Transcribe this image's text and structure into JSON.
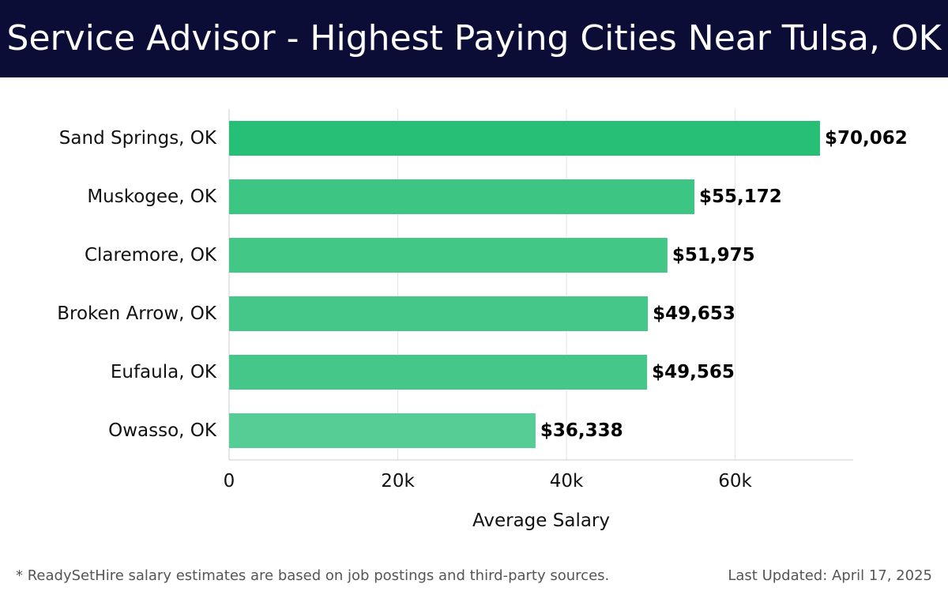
{
  "header": {
    "title": "Service Advisor - Highest Paying Cities Near Tulsa, OK"
  },
  "footer": {
    "note": "* ReadySetHire salary estimates are based on job postings and third-party sources.",
    "updated": "Last Updated: April 17, 2025"
  },
  "chart_data": {
    "type": "bar",
    "orientation": "horizontal",
    "title": "Service Advisor - Highest Paying Cities Near Tulsa, OK",
    "xlabel": "Average Salary",
    "ylabel": "",
    "categories": [
      "Sand Springs, OK",
      "Muskogee, OK",
      "Claremore, OK",
      "Broken Arrow, OK",
      "Eufaula, OK",
      "Owasso, OK"
    ],
    "values": [
      70062,
      55172,
      51975,
      49653,
      49565,
      36338
    ],
    "value_labels": [
      "$70,062",
      "$55,172",
      "$51,975",
      "$49,653",
      "$49,565",
      "$36,338"
    ],
    "xlim": [
      0,
      74000
    ],
    "xticks": [
      0,
      20000,
      40000,
      60000
    ],
    "xtick_labels": [
      "0",
      "20k",
      "40k",
      "60k"
    ],
    "grid": true,
    "bar_colors": [
      "#27bf76",
      "#3cc583",
      "#42c787",
      "#44c789",
      "#44c789",
      "#57cd96"
    ]
  }
}
